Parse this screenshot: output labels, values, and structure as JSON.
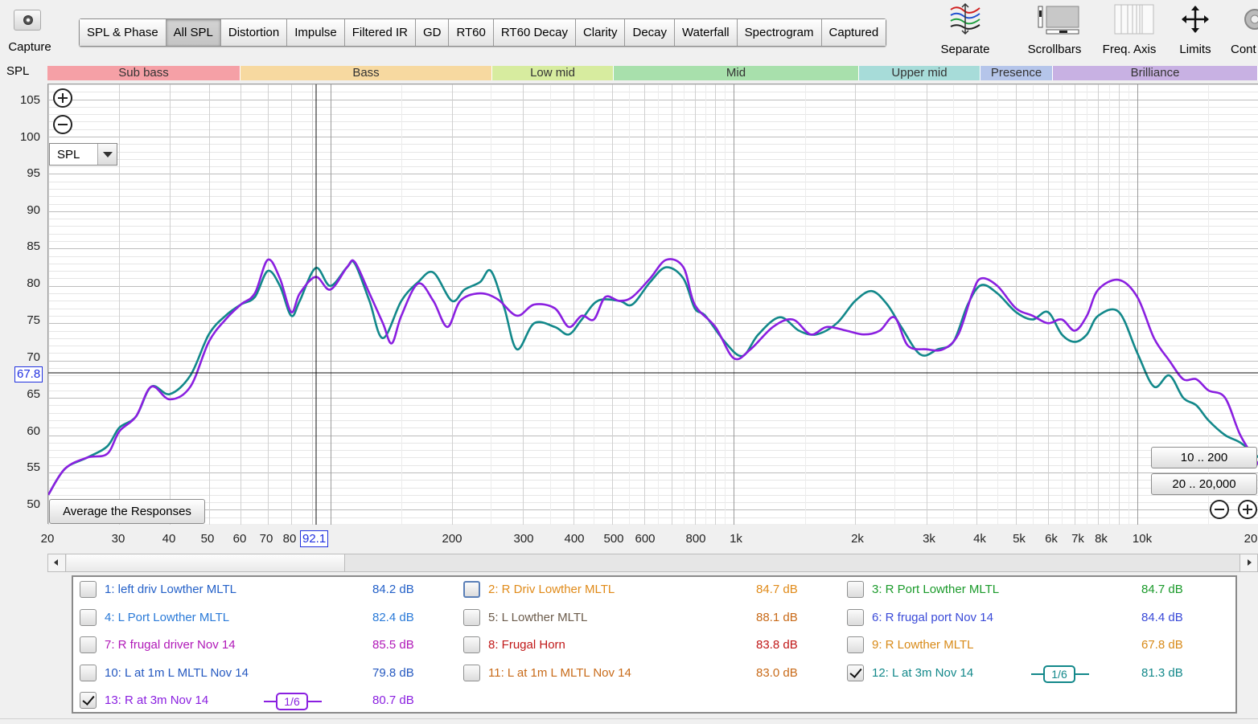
{
  "toolbar": {
    "capture_label": "Capture",
    "tabs": [
      "SPL & Phase",
      "All SPL",
      "Distortion",
      "Impulse",
      "Filtered IR",
      "GD",
      "RT60",
      "RT60 Decay",
      "Clarity",
      "Decay",
      "Waterfall",
      "Spectrogram",
      "Captured"
    ],
    "active_tab": "All SPL",
    "tools": [
      "Separate",
      "Scrollbars",
      "Freq. Axis",
      "Limits",
      "Cont"
    ]
  },
  "bands": {
    "header": "SPL",
    "items": [
      {
        "label": "Sub bass",
        "color": "#f5a0a6"
      },
      {
        "label": "Bass",
        "color": "#f7d9a0"
      },
      {
        "label": "Low mid",
        "color": "#d7ec9f"
      },
      {
        "label": "Mid",
        "color": "#a8e0ac"
      },
      {
        "label": "Upper mid",
        "color": "#a7dcd9"
      },
      {
        "label": "Presence",
        "color": "#b5c5ea"
      },
      {
        "label": "Brilliance",
        "color": "#c8b1e3"
      }
    ]
  },
  "controls": {
    "spl_select": "SPL",
    "average_button": "Average the Responses",
    "range_buttons": [
      "10 .. 200",
      "20 .. 20,000"
    ]
  },
  "cursor": {
    "x_readout": "92.1",
    "y_readout": "67.8"
  },
  "chart_data": {
    "type": "line",
    "x_scale": "log",
    "xlim": [
      20,
      20000
    ],
    "ylim": [
      48,
      107
    ],
    "ylabel": "SPL",
    "y_ticks": [
      "105",
      "100",
      "95",
      "90",
      "85",
      "80",
      "75",
      "70",
      "65",
      "60",
      "55",
      "50"
    ],
    "x_ticks": [
      "20",
      "30",
      "40",
      "50",
      "60",
      "70",
      "80",
      "200",
      "300",
      "400",
      "500",
      "600",
      "800",
      "1k",
      "2k",
      "3k",
      "4k",
      "5k",
      "6k",
      "7k",
      "8k",
      "10k",
      "20"
    ],
    "grid": true,
    "series": [
      {
        "name": "12: L at 3m Nov 14",
        "color": "#12888a",
        "points": [
          [
            20,
            52
          ],
          [
            22,
            55.5
          ],
          [
            25,
            57
          ],
          [
            28,
            58.5
          ],
          [
            30,
            61
          ],
          [
            33,
            62.5
          ],
          [
            36,
            66.5
          ],
          [
            40,
            65.5
          ],
          [
            45,
            68
          ],
          [
            50,
            73.5
          ],
          [
            55,
            76
          ],
          [
            60,
            77.5
          ],
          [
            65,
            78.5
          ],
          [
            70,
            82
          ],
          [
            75,
            80
          ],
          [
            80,
            76
          ],
          [
            84,
            78
          ],
          [
            92,
            82.4
          ],
          [
            100,
            80
          ],
          [
            110,
            82.5
          ],
          [
            115,
            83
          ],
          [
            125,
            78
          ],
          [
            135,
            73
          ],
          [
            150,
            78
          ],
          [
            165,
            80.5
          ],
          [
            180,
            81.8
          ],
          [
            200,
            78
          ],
          [
            215,
            79.5
          ],
          [
            235,
            80.5
          ],
          [
            250,
            82
          ],
          [
            270,
            77
          ],
          [
            290,
            71.5
          ],
          [
            320,
            75
          ],
          [
            360,
            74.5
          ],
          [
            390,
            73.5
          ],
          [
            420,
            75.5
          ],
          [
            460,
            78
          ],
          [
            520,
            78
          ],
          [
            560,
            77.5
          ],
          [
            620,
            80.5
          ],
          [
            680,
            82.5
          ],
          [
            750,
            81
          ],
          [
            800,
            77
          ],
          [
            850,
            76
          ],
          [
            950,
            72.5
          ],
          [
            1050,
            70.6
          ],
          [
            1150,
            73.5
          ],
          [
            1300,
            75.8
          ],
          [
            1450,
            74
          ],
          [
            1600,
            73.5
          ],
          [
            1800,
            75
          ],
          [
            2000,
            78
          ],
          [
            2200,
            79.3
          ],
          [
            2400,
            77.5
          ],
          [
            2600,
            74.5
          ],
          [
            2900,
            70.8
          ],
          [
            3200,
            71.5
          ],
          [
            3500,
            72.5
          ],
          [
            3800,
            77.5
          ],
          [
            4100,
            80.1
          ],
          [
            4500,
            79
          ],
          [
            5000,
            76.5
          ],
          [
            5500,
            75.5
          ],
          [
            6000,
            76.5
          ],
          [
            6500,
            73.5
          ],
          [
            7000,
            72.5
          ],
          [
            7500,
            73.5
          ],
          [
            8000,
            76
          ],
          [
            9000,
            76.5
          ],
          [
            10000,
            71
          ],
          [
            11000,
            66.5
          ],
          [
            12000,
            68
          ],
          [
            13000,
            65
          ],
          [
            14000,
            64
          ],
          [
            15000,
            62
          ],
          [
            16500,
            60
          ],
          [
            18000,
            59
          ],
          [
            20000,
            57
          ]
        ]
      },
      {
        "name": "13: R at 3m Nov 14",
        "color": "#8a1fe0",
        "points": [
          [
            20,
            52
          ],
          [
            22,
            55.5
          ],
          [
            25,
            57
          ],
          [
            28,
            57.5
          ],
          [
            30,
            60.5
          ],
          [
            33,
            62.5
          ],
          [
            36,
            66.5
          ],
          [
            40,
            64.8
          ],
          [
            45,
            66.5
          ],
          [
            50,
            72.5
          ],
          [
            55,
            75.5
          ],
          [
            60,
            77.5
          ],
          [
            65,
            79
          ],
          [
            70,
            83.5
          ],
          [
            75,
            81
          ],
          [
            80,
            76.5
          ],
          [
            84,
            79
          ],
          [
            92,
            81.2
          ],
          [
            100,
            79.5
          ],
          [
            110,
            82.5
          ],
          [
            115,
            83.2
          ],
          [
            125,
            79
          ],
          [
            135,
            75
          ],
          [
            142,
            72.3
          ],
          [
            150,
            76
          ],
          [
            165,
            80.3
          ],
          [
            180,
            78
          ],
          [
            195,
            74.5
          ],
          [
            210,
            78
          ],
          [
            235,
            79
          ],
          [
            260,
            78.2
          ],
          [
            290,
            76
          ],
          [
            320,
            77.5
          ],
          [
            360,
            77
          ],
          [
            390,
            74.5
          ],
          [
            420,
            76
          ],
          [
            450,
            75.5
          ],
          [
            480,
            78.5
          ],
          [
            520,
            78
          ],
          [
            560,
            78.5
          ],
          [
            620,
            81
          ],
          [
            680,
            83.5
          ],
          [
            750,
            82.5
          ],
          [
            800,
            77.5
          ],
          [
            900,
            74.5
          ],
          [
            1000,
            70.3
          ],
          [
            1100,
            71.5
          ],
          [
            1250,
            74.5
          ],
          [
            1400,
            75.5
          ],
          [
            1550,
            73.5
          ],
          [
            1700,
            74.5
          ],
          [
            1900,
            74
          ],
          [
            2100,
            73.5
          ],
          [
            2300,
            74
          ],
          [
            2500,
            75.8
          ],
          [
            2700,
            72
          ],
          [
            3000,
            71.5
          ],
          [
            3300,
            71.5
          ],
          [
            3600,
            73.5
          ],
          [
            3900,
            79
          ],
          [
            4100,
            81
          ],
          [
            4500,
            80
          ],
          [
            5000,
            77
          ],
          [
            5500,
            76
          ],
          [
            6000,
            75
          ],
          [
            6500,
            75.5
          ],
          [
            7000,
            74
          ],
          [
            7500,
            76
          ],
          [
            8000,
            79.5
          ],
          [
            9000,
            80.8
          ],
          [
            10000,
            78.5
          ],
          [
            11000,
            73
          ],
          [
            12000,
            70
          ],
          [
            13000,
            67.5
          ],
          [
            14000,
            67.5
          ],
          [
            15000,
            66
          ],
          [
            16500,
            65
          ],
          [
            18000,
            60
          ],
          [
            20000,
            56
          ]
        ]
      }
    ]
  },
  "legend": {
    "items": [
      {
        "name": "1: left driv Lowther MLTL",
        "value": "84.2 dB",
        "color": "#2360c8",
        "checked": false
      },
      {
        "name": "2: R Driv Lowther MLTL",
        "value": "84.7 dB",
        "color": "#e08a18",
        "checked": false,
        "focus": true
      },
      {
        "name": "3: R Port Lowther MLTL",
        "value": "84.7 dB",
        "color": "#1a9a2a",
        "checked": false
      },
      {
        "name": "4: L Port Lowther MLTL",
        "value": "82.4 dB",
        "color": "#2a7ad8",
        "checked": false
      },
      {
        "name": "5: L Lowther MLTL",
        "value": "88.1 dB",
        "color": "#6a5a4a",
        "checked": false
      },
      {
        "name": "6: R frugal port Nov 14",
        "value": "84.4 dB",
        "color": "#3a4ad8",
        "checked": false
      },
      {
        "name": "7: R frugal driver Nov 14",
        "value": "85.5 dB",
        "color": "#b018b8",
        "checked": false
      },
      {
        "name": "8: Frugal Horn",
        "value": "83.8 dB",
        "color": "#c01818",
        "checked": false
      },
      {
        "name": "9: R  Lowther MLTL",
        "value": "67.8 dB",
        "color": "#d88a18",
        "checked": false
      },
      {
        "name": "10: L at 1m L MLTL Nov 14",
        "value": "79.8 dB",
        "color": "#2458c0",
        "checked": false
      },
      {
        "name": "11: L at 1m L MLTL Nov 14",
        "value": "83.0 dB",
        "color": "#c86a18",
        "checked": false
      },
      {
        "name": "12: L at 3m Nov 14",
        "value": "81.3 dB",
        "color": "#12888a",
        "checked": true,
        "smoothing": "1/6"
      },
      {
        "name": "13: R at 3m Nov 14",
        "value": "80.7 dB",
        "color": "#8a1fe0",
        "checked": true,
        "smoothing": "1/6"
      }
    ]
  }
}
